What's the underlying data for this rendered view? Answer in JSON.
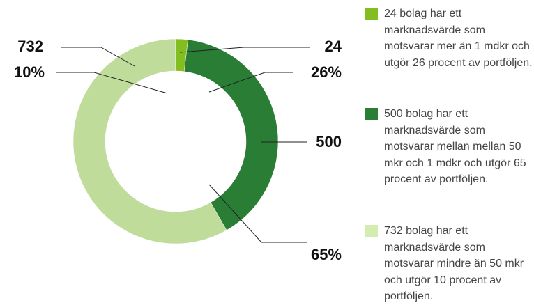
{
  "chart_data": {
    "type": "donut",
    "rings": [
      {
        "values": [
          24,
          500,
          732
        ],
        "colors": [
          "#84bd1f",
          "#2a7d35",
          "#c0dc9a"
        ]
      },
      {
        "values": [
          26,
          65,
          10
        ],
        "value_labels": [
          "26%",
          "65%",
          "10%"
        ],
        "colors": [
          "#84bd1f",
          "#2a7d35",
          "#c8e2a6"
        ]
      }
    ],
    "legend": [
      {
        "label": "24 bolag har ett marknadsvärde som motsvarar mer än 1 mdkr och utgör 26 procent av portföljen.",
        "color": "#84bd1f"
      },
      {
        "label": "500 bolag har ett marknadsvärde som motsvarar mellan mellan 50 mkr och 1 mdkr och utgör 65 procent av portföljen.",
        "color": "#2a7d35"
      },
      {
        "label": "732 bolag har ett marknadsvärde som motsvarar mindre än 50 mkr och utgör 10 procent av portföljen.",
        "color": "#d4ecb0"
      }
    ]
  }
}
